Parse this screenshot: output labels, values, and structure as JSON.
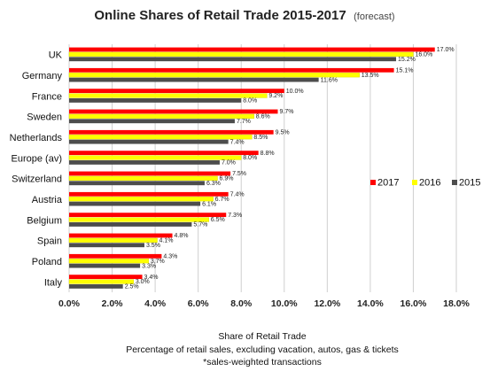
{
  "chart_data": {
    "type": "bar",
    "orientation": "horizontal",
    "title": "Online Shares of Retail Trade 2015-2017",
    "subtitle": "(forecast)",
    "categories": [
      "UK",
      "Germany",
      "France",
      "Sweden",
      "Netherlands",
      "Europe (av)",
      "Switzerland",
      "Austria",
      "Belgium",
      "Spain",
      "Poland",
      "Italy"
    ],
    "series": [
      {
        "name": "2017",
        "color": "#ff0000",
        "values": [
          17.0,
          15.1,
          10.0,
          9.7,
          9.5,
          8.8,
          7.5,
          7.4,
          7.3,
          4.8,
          4.3,
          3.4
        ]
      },
      {
        "name": "2016",
        "color": "#ffff00",
        "values": [
          16.0,
          13.5,
          9.2,
          8.6,
          8.5,
          8.0,
          6.9,
          6.7,
          6.5,
          4.1,
          3.7,
          3.0
        ]
      },
      {
        "name": "2015",
        "color": "#4d4d4d",
        "values": [
          15.2,
          11.6,
          8.0,
          7.7,
          7.4,
          7.0,
          6.3,
          6.1,
          5.7,
          3.5,
          3.3,
          2.5
        ]
      }
    ],
    "value_labels": [
      [
        "17.0%",
        "15.1%",
        "10.0%",
        "9.7%",
        "9.5%",
        "8.8%",
        "7.5%",
        "7.4%",
        "7.3%",
        "4.8%",
        "4.3%",
        "3.4%"
      ],
      [
        "16.0%",
        "13.5%",
        "9.2%",
        "8.6%",
        "8.5%",
        "8.0%",
        "6.9%",
        "6.7%",
        "6.5%",
        "4.1%",
        "3.7%",
        "3.0%"
      ],
      [
        "15.2%",
        "11.6%",
        "8.0%",
        "7.7%",
        "7.4%",
        "7.0%",
        "6.3%",
        "6.1%",
        "5.7%",
        "3.5%",
        "3.3%",
        "2.5%"
      ]
    ],
    "xlim": [
      0,
      18
    ],
    "x_ticks": [
      0,
      2,
      4,
      6,
      8,
      10,
      12,
      14,
      16,
      18
    ],
    "x_tick_labels": [
      "0.0%",
      "2.0%",
      "4.0%",
      "6.0%",
      "8.0%",
      "10.0%",
      "12.0%",
      "14.0%",
      "16.0%",
      "18.0%"
    ],
    "xlabel": [
      "Share of Retail Trade",
      "Percentage of retail sales, excluding vacation, autos, gas & tickets",
      "*sales-weighted transactions"
    ],
    "grid": "vertical",
    "legend_position": "right"
  }
}
